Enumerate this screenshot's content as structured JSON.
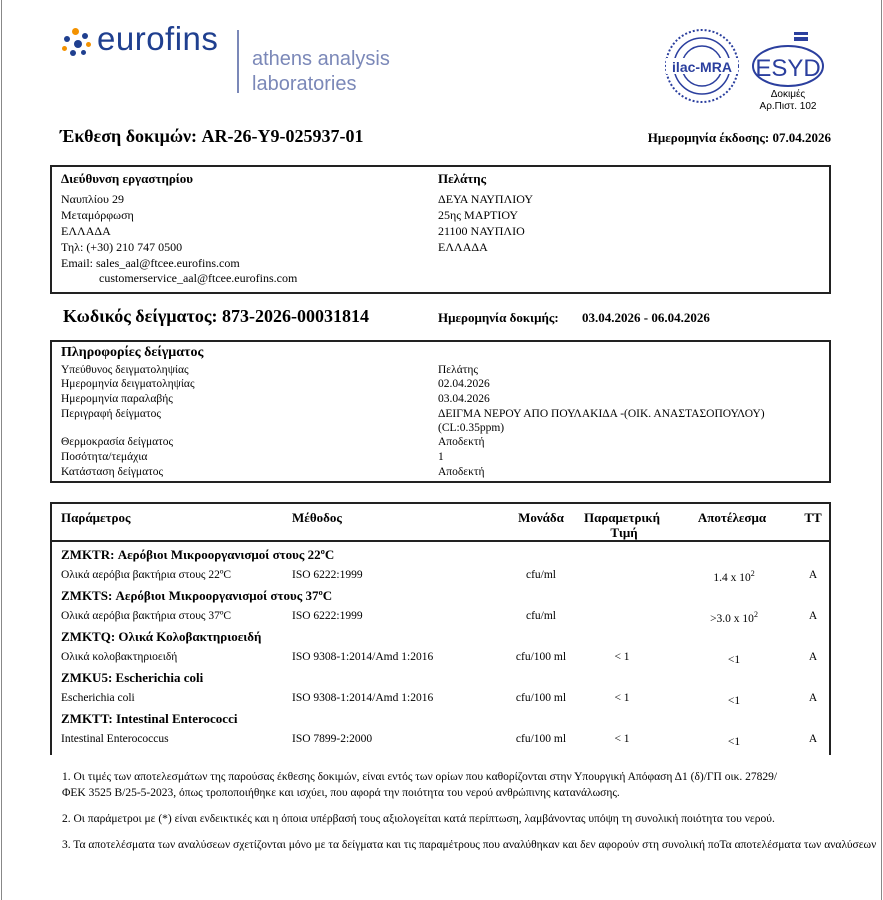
{
  "header": {
    "brand": "eurofins",
    "lab_line1": "athens analysis",
    "lab_line2": "laboratories",
    "ilac_logo": "ilac-MRA",
    "esyd_logo": "ESYD",
    "esyd_caption1": "Δοκιμές",
    "esyd_caption2": "Αρ.Πιστ. 102"
  },
  "report": {
    "title": "Έκθεση δοκιμών: AR-26-Y9-025937-01",
    "issue_date": "Ημερομηνία έκδοσης: 07.04.2026"
  },
  "address": {
    "lab_heading": "Διεύθυνση εργαστηρίου",
    "lab_lines": [
      "Ναυπλίου 29",
      "Μεταμόρφωση",
      "ΕΛΛΑΔΑ",
      "Τηλ: (+30) 210 747 0500",
      "Email: sales_aal@ftcee.eurofins.com",
      "customerservice_aal@ftcee.eurofins.com"
    ],
    "client_heading": "Πελάτης",
    "client_lines": [
      "ΔΕΥΑ ΝΑΥΠΛΙΟΥ",
      "25ης ΜΑΡΤΙΟΥ",
      "21100 ΝΑΥΠΛΙΟ",
      "ΕΛΛΑΔΑ"
    ]
  },
  "sample": {
    "code": "Κωδικός δείγματος: 873-2026-00031814",
    "test_date_label": "Ημερομηνία δοκιμής:",
    "test_date": "03.04.2026 - 06.04.2026"
  },
  "sample_info": {
    "heading": "Πληροφορίες δείγματος",
    "rows": [
      {
        "label": "Υπεύθυνος δειγματοληψίας",
        "value": "Πελάτης"
      },
      {
        "label": "Ημερομηνία δειγματοληψίας",
        "value": "02.04.2026"
      },
      {
        "label": "Ημερομηνία παραλαβής",
        "value": "03.04.2026"
      },
      {
        "label": "Περιγραφή δείγματος",
        "value": "ΔΕΙΓΜΑ ΝΕΡΟΥ ΑΠΟ ΠΟΥΛΑΚΙΔΑ -(ΟΙΚ. ΑΝΑΣΤΑΣΟΠΟΥΛΟΥ)",
        "value2": "(CL:0.35ppm)"
      },
      {
        "label": "Θερμοκρασία δείγματος",
        "value": "Αποδεκτή"
      },
      {
        "label": "Ποσότητα/τεμάχια",
        "value": "1"
      },
      {
        "label": "Κατάσταση δείγματος",
        "value": "Αποδεκτή"
      }
    ]
  },
  "results": {
    "headers": {
      "parameter": "Παράμετρος",
      "method": "Μέθοδος",
      "unit": "Μονάδα",
      "param_value1": "Παραμετρική",
      "param_value2": "Τιμή",
      "result": "Αποτέλεσμα",
      "tt": "ΤΤ"
    },
    "groups": [
      {
        "title": "ZMKTR: Αερόβιοι Μικροοργανισμοί στους 22ºC",
        "param": "Ολικά αερόβια βακτήρια στους 22ºC",
        "method": "ISO 6222:1999",
        "unit": "cfu/ml",
        "limit": "",
        "result": "1.4 x 10",
        "exp": "2",
        "tt": "A"
      },
      {
        "title": "ZMKTS: Αερόβιοι Μικροοργανισμοί στους 37ºC",
        "param": "Ολικά αερόβια βακτήρια στους 37ºC",
        "method": "ISO 6222:1999",
        "unit": "cfu/ml",
        "limit": "",
        "result": ">3.0 x 10",
        "exp": "2",
        "tt": "A"
      },
      {
        "title": "ZMKTQ: Ολικά Κολοβακτηριοειδή",
        "param": "Ολικά κολοβακτηριοειδή",
        "method": "ISO 9308-1:2014/Amd 1:2016",
        "unit": "cfu/100 ml",
        "limit": "< 1",
        "result": "<1",
        "exp": "",
        "tt": "A"
      },
      {
        "title": "ZMKU5: Escherichia coli",
        "param": "Escherichia coli",
        "method": "ISO 9308-1:2014/Amd 1:2016",
        "unit": "cfu/100 ml",
        "limit": "< 1",
        "result": "<1",
        "exp": "",
        "tt": "A"
      },
      {
        "title": "ZMKTT: Intestinal Enterococci",
        "param": "Intestinal Enterococcus",
        "method": "ISO 7899-2:2000",
        "unit": "cfu/100 ml",
        "limit": "< 1",
        "result": "<1",
        "exp": "",
        "tt": "A"
      }
    ]
  },
  "notes": [
    "1. Οι τιμές των αποτελεσμάτων της παρούσας έκθεσης δοκιμών, είναι εντός των ορίων που καθορίζονται στην Υπουργική Απόφαση Δ1 (δ)/ΓΠ οικ. 27829/",
    "ΦΕΚ 3525 Β/25-5-2023, όπως τροποποιήθηκε και ισχύει, που αφορά την ποιότητα του νερού ανθρώπινης κατανάλωσης.",
    "2. Οι παράμετροι με (*) είναι ενδεικτικές και η όποια υπέρβασή τους αξιολογείται κατά περίπτωση, λαμβάνοντας υπόψη τη συνολική ποιότητα του νερού.",
    "3. Τα αποτελέσματα των αναλύσεων σχετίζονται μόνο με τα δείγματα και τις παραμέτρους που αναλύθηκαν και δεν αφορούν στη συνολική ποΤα αποτελέσματα των αναλύσεων"
  ]
}
